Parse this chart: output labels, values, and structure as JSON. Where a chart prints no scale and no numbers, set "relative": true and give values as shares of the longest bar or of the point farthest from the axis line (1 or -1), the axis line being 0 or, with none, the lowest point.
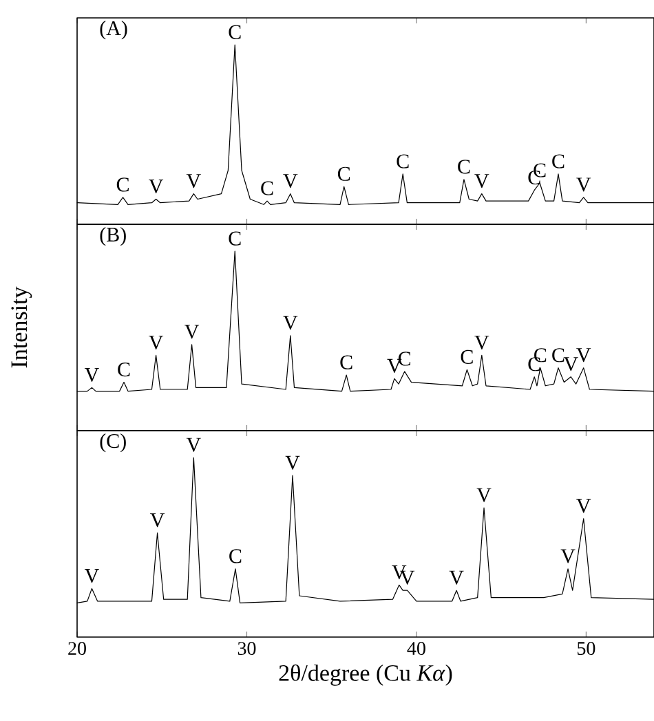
{
  "chart_data": [
    {
      "type": "line",
      "title": "(A)",
      "relative": true,
      "xlim": [
        20,
        54
      ],
      "xticks": [
        20,
        30,
        40,
        50
      ],
      "tick_labels": false,
      "marker": "none",
      "color": "#000000",
      "x": [
        20,
        22.4,
        22.7,
        23.0,
        24.4,
        24.65,
        24.9,
        26.6,
        26.87,
        27.1,
        28.5,
        28.9,
        29.3,
        29.7,
        30.2,
        31.0,
        31.2,
        31.4,
        32.3,
        32.57,
        32.8,
        35.5,
        35.73,
        36.0,
        38.95,
        39.2,
        39.45,
        42.55,
        42.8,
        43.1,
        43.6,
        43.85,
        44.1,
        46.6,
        46.95,
        47.27,
        47.6,
        48.1,
        48.36,
        48.6,
        49.6,
        49.85,
        50.1,
        54
      ],
      "values": [
        0.12,
        0.11,
        0.15,
        0.11,
        0.12,
        0.14,
        0.12,
        0.13,
        0.17,
        0.14,
        0.17,
        0.3,
        1.0,
        0.3,
        0.14,
        0.11,
        0.13,
        0.11,
        0.12,
        0.17,
        0.12,
        0.11,
        0.21,
        0.11,
        0.12,
        0.28,
        0.12,
        0.12,
        0.25,
        0.14,
        0.13,
        0.17,
        0.13,
        0.13,
        0.19,
        0.23,
        0.13,
        0.13,
        0.28,
        0.13,
        0.12,
        0.15,
        0.12,
        0.12
      ],
      "annotations": [
        {
          "text": "C",
          "x": 22.7,
          "y": 0.15
        },
        {
          "text": "V",
          "x": 24.65,
          "y": 0.14
        },
        {
          "text": "V",
          "x": 26.87,
          "y": 0.17
        },
        {
          "text": "C",
          "x": 29.3,
          "y": 1.0
        },
        {
          "text": "C",
          "x": 31.2,
          "y": 0.13
        },
        {
          "text": "V",
          "x": 32.57,
          "y": 0.17
        },
        {
          "text": "C",
          "x": 35.73,
          "y": 0.21
        },
        {
          "text": "C",
          "x": 39.2,
          "y": 0.28
        },
        {
          "text": "C",
          "x": 42.8,
          "y": 0.25
        },
        {
          "text": "V",
          "x": 43.85,
          "y": 0.17
        },
        {
          "text": "C",
          "x": 46.95,
          "y": 0.19
        },
        {
          "text": "C",
          "x": 47.27,
          "y": 0.23
        },
        {
          "text": "C",
          "x": 48.36,
          "y": 0.28
        },
        {
          "text": "V",
          "x": 49.85,
          "y": 0.15
        }
      ]
    },
    {
      "type": "line",
      "title": "(B)",
      "ylabel": "Intensity",
      "relative": true,
      "xlim": [
        20,
        54
      ],
      "xticks": [
        20,
        30,
        40,
        50
      ],
      "tick_labels": false,
      "marker": "none",
      "color": "#000000",
      "x": [
        20,
        20.6,
        20.87,
        21.1,
        22.5,
        22.76,
        23.0,
        24.4,
        24.65,
        24.9,
        26.5,
        26.76,
        27.0,
        28.8,
        29.3,
        29.7,
        32.3,
        32.57,
        32.8,
        35.6,
        35.87,
        36.1,
        38.5,
        38.7,
        38.95,
        39.3,
        39.7,
        42.7,
        42.98,
        43.3,
        43.6,
        43.85,
        44.1,
        46.7,
        46.95,
        47.1,
        47.3,
        47.6,
        48.1,
        48.36,
        48.7,
        49.1,
        49.4,
        49.85,
        50.2,
        54
      ],
      "values": [
        0.22,
        0.22,
        0.24,
        0.22,
        0.22,
        0.27,
        0.22,
        0.23,
        0.42,
        0.23,
        0.23,
        0.48,
        0.24,
        0.24,
        1.0,
        0.26,
        0.23,
        0.53,
        0.24,
        0.22,
        0.31,
        0.22,
        0.23,
        0.29,
        0.26,
        0.33,
        0.27,
        0.25,
        0.34,
        0.25,
        0.26,
        0.42,
        0.25,
        0.23,
        0.3,
        0.25,
        0.35,
        0.25,
        0.26,
        0.35,
        0.27,
        0.3,
        0.26,
        0.35,
        0.23,
        0.22
      ],
      "annotations": [
        {
          "text": "V",
          "x": 20.87,
          "y": 0.24
        },
        {
          "text": "C",
          "x": 22.76,
          "y": 0.27
        },
        {
          "text": "V",
          "x": 24.65,
          "y": 0.42
        },
        {
          "text": "V",
          "x": 26.76,
          "y": 0.48
        },
        {
          "text": "C",
          "x": 29.3,
          "y": 1.0
        },
        {
          "text": "V",
          "x": 32.57,
          "y": 0.53
        },
        {
          "text": "C",
          "x": 35.87,
          "y": 0.31
        },
        {
          "text": "V",
          "x": 38.7,
          "y": 0.29
        },
        {
          "text": "C",
          "x": 39.3,
          "y": 0.33
        },
        {
          "text": "C",
          "x": 42.98,
          "y": 0.34
        },
        {
          "text": "V",
          "x": 43.85,
          "y": 0.42
        },
        {
          "text": "C",
          "x": 46.95,
          "y": 0.3
        },
        {
          "text": "C",
          "x": 47.3,
          "y": 0.35
        },
        {
          "text": "C",
          "x": 48.36,
          "y": 0.35
        },
        {
          "text": "V",
          "x": 49.1,
          "y": 0.3
        },
        {
          "text": "V",
          "x": 49.85,
          "y": 0.35
        }
      ]
    },
    {
      "type": "line",
      "title": "(C)",
      "xlabel": "2θ/degree (Cu *Kα*)",
      "relative": true,
      "xlim": [
        20,
        54
      ],
      "xticks": [
        20,
        30,
        40,
        50
      ],
      "tick_labels": "x",
      "marker": "none",
      "color": "#000000",
      "x": [
        20,
        20.6,
        20.87,
        21.2,
        24.4,
        24.73,
        25.1,
        26.5,
        26.87,
        27.3,
        29.0,
        29.33,
        29.6,
        32.3,
        32.7,
        33.1,
        35.5,
        38.6,
        38.98,
        39.2,
        39.46,
        40.0,
        42.1,
        42.36,
        42.6,
        43.6,
        43.98,
        44.4,
        47.5,
        48.6,
        48.93,
        49.2,
        49.85,
        50.3,
        54
      ],
      "values": [
        0.19,
        0.2,
        0.27,
        0.2,
        0.2,
        0.58,
        0.21,
        0.21,
        1.0,
        0.22,
        0.2,
        0.38,
        0.19,
        0.2,
        0.9,
        0.23,
        0.2,
        0.21,
        0.29,
        0.26,
        0.26,
        0.2,
        0.2,
        0.26,
        0.2,
        0.22,
        0.72,
        0.22,
        0.22,
        0.24,
        0.38,
        0.26,
        0.66,
        0.22,
        0.21
      ],
      "annotations": [
        {
          "text": "V",
          "x": 20.87,
          "y": 0.27
        },
        {
          "text": "V",
          "x": 24.73,
          "y": 0.58
        },
        {
          "text": "V",
          "x": 26.87,
          "y": 1.0
        },
        {
          "text": "C",
          "x": 29.33,
          "y": 0.38
        },
        {
          "text": "V",
          "x": 32.7,
          "y": 0.9
        },
        {
          "text": "V",
          "x": 38.98,
          "y": 0.29
        },
        {
          "text": "V",
          "x": 39.46,
          "y": 0.26
        },
        {
          "text": "V",
          "x": 42.36,
          "y": 0.26
        },
        {
          "text": "V",
          "x": 43.98,
          "y": 0.72
        },
        {
          "text": "V",
          "x": 48.93,
          "y": 0.38
        },
        {
          "text": "V",
          "x": 49.85,
          "y": 0.66
        }
      ]
    }
  ]
}
